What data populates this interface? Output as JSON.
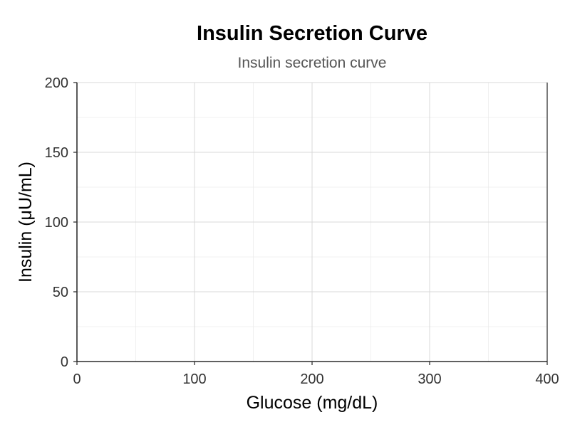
{
  "chart_data": {
    "type": "line",
    "title": "Insulin Secretion Curve",
    "subtitle": "Insulin secretion curve",
    "xlabel": "Glucose (mg/dL)",
    "ylabel": "Insulin (μU/mL)",
    "xlim": [
      0,
      400
    ],
    "ylim": [
      0,
      200
    ],
    "x_ticks": [
      0,
      100,
      200,
      300,
      400
    ],
    "y_ticks": [
      0,
      50,
      100,
      150,
      200
    ],
    "grid": true,
    "series": []
  }
}
